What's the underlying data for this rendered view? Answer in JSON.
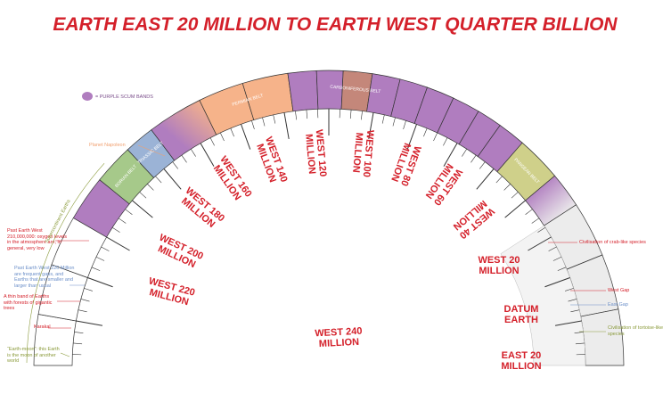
{
  "title": "EARTH EAST 20 MILLION TO EARTH WEST QUARTER BILLION",
  "legend": {
    "label": "= PURPLE SCUM BANDS"
  },
  "belts": [
    "BORIAN BELT",
    "TRIASSIC BELT",
    "PERMIAN BELT",
    "CARBONIFEROUS BELT",
    "PANGEAN BELT"
  ],
  "eras": [
    [
      "WEST 240",
      "MILLION"
    ],
    [
      "WEST 220",
      "MILLION"
    ],
    [
      "WEST 200",
      "MILLION"
    ],
    [
      "WEST 180",
      "MILLION"
    ],
    [
      "WEST 160",
      "MILLION"
    ],
    [
      "WEST 140",
      "MILLION"
    ],
    [
      "WEST 120",
      "MILLION"
    ],
    [
      "WEST 100",
      "MILLION"
    ],
    [
      "WEST 80",
      "MILLION"
    ],
    [
      "WEST 60",
      "MILLION"
    ],
    [
      "WEST 40",
      "MILLION"
    ],
    [
      "WEST 20",
      "MILLION"
    ],
    [
      "DATUM",
      "EARTH"
    ],
    [
      "EAST 20",
      "MILLION"
    ]
  ],
  "notes_left": [
    "Planet Napoleon",
    "Supercontinent Earths",
    "Past Earth West 210,000,000: oxygen levels in the atmosphere are, in general, very low",
    "Past Earth West 220 Million are frequent gaps, and Earths that are smaller and larger than usual",
    "A thin band of Earths with forests of gigantic trees",
    "Karakal",
    "“Earth-moon”: this Earth is the moon of another world"
  ],
  "notes_right": [
    "Civilisation of crab-like species",
    "West Gap",
    "East Gap",
    "Civilisation of tortoise-like species"
  ]
}
